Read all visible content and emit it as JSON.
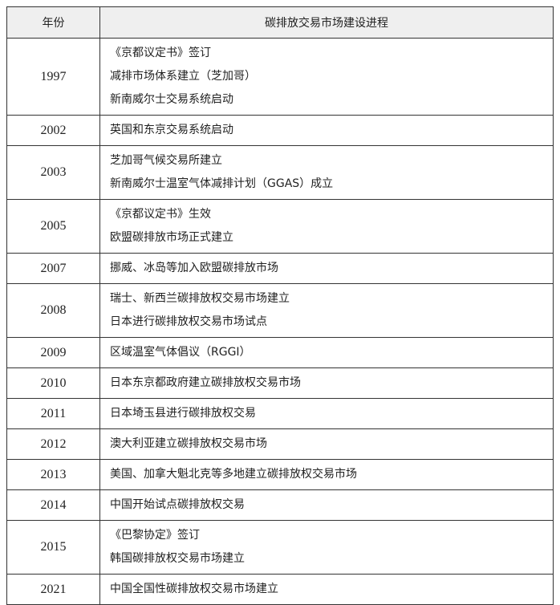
{
  "table": {
    "headers": [
      "年份",
      "碳排放交易市场建设进程"
    ],
    "rows": [
      {
        "year": "1997",
        "events": [
          "《京都议定书》签订",
          "减排市场体系建立（芝加哥）",
          "新南威尔士交易系统启动"
        ]
      },
      {
        "year": "2002",
        "events": [
          "英国和东京交易系统启动"
        ]
      },
      {
        "year": "2003",
        "events": [
          "芝加哥气候交易所建立",
          "新南威尔士温室气体减排计划（GGAS）成立"
        ]
      },
      {
        "year": "2005",
        "events": [
          "《京都议定书》生效",
          "欧盟碳排放市场正式建立"
        ]
      },
      {
        "year": "2007",
        "events": [
          "挪威、冰岛等加入欧盟碳排放市场"
        ]
      },
      {
        "year": "2008",
        "events": [
          "瑞士、新西兰碳排放权交易市场建立",
          "日本进行碳排放权交易市场试点"
        ]
      },
      {
        "year": "2009",
        "events": [
          "区域温室气体倡议（RGGI）"
        ]
      },
      {
        "year": "2010",
        "events": [
          "日本东京都政府建立碳排放权交易市场"
        ]
      },
      {
        "year": "2011",
        "events": [
          "日本埼玉县进行碳排放权交易"
        ]
      },
      {
        "year": "2012",
        "events": [
          "澳大利亚建立碳排放权交易市场"
        ]
      },
      {
        "year": "2013",
        "events": [
          "美国、加拿大魁北克等多地建立碳排放权交易市场"
        ]
      },
      {
        "year": "2014",
        "events": [
          "中国开始试点碳排放权交易"
        ]
      },
      {
        "year": "2015",
        "events": [
          "《巴黎协定》签订",
          "韩国碳排放权交易市场建立"
        ]
      },
      {
        "year": "2021",
        "events": [
          "中国全国性碳排放权交易市场建立"
        ]
      }
    ]
  }
}
